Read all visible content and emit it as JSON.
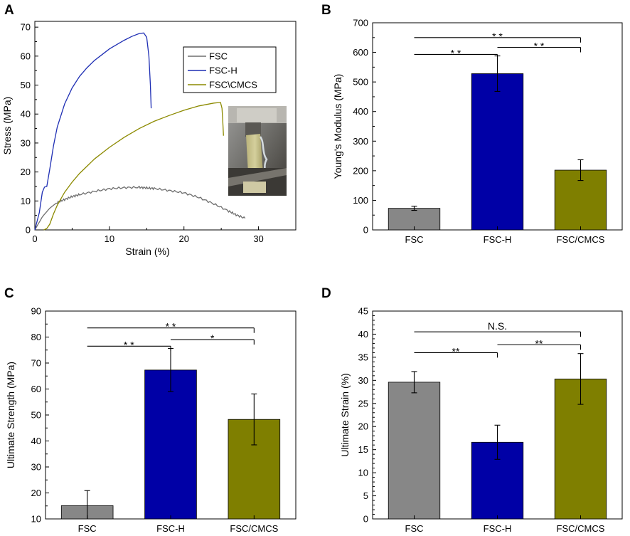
{
  "chart_data": [
    {
      "panel": "A",
      "type": "line",
      "xlabel": "Strain (%)",
      "ylabel": "Stress (MPa)",
      "xlim": [
        0,
        35
      ],
      "ylim": [
        0,
        72
      ],
      "xticks": [
        0,
        10,
        20,
        30
      ],
      "yticks": [
        0,
        10,
        20,
        30,
        40,
        50,
        60,
        70
      ],
      "legend_position": "top-right",
      "inset": "photo of specimen in tensile grips",
      "series": [
        {
          "name": "FSC",
          "color": "#6e6e6e",
          "x": [
            0,
            1,
            2,
            3,
            4,
            5,
            6,
            8,
            10,
            12,
            14,
            15,
            16,
            18,
            20,
            22,
            24,
            26,
            27,
            28.2
          ],
          "y": [
            0,
            4.5,
            7.5,
            9.5,
            10.5,
            11.5,
            12.2,
            13.3,
            14.2,
            14.6,
            14.7,
            14.5,
            14.3,
            13.6,
            12.8,
            11.2,
            9.0,
            6.5,
            5.2,
            4.0
          ]
        },
        {
          "name": "FSC-H",
          "color": "#1f2fb4",
          "x": [
            0,
            0.6,
            1.0,
            1.3,
            1.6,
            2.0,
            2.5,
            3,
            4,
            5,
            6,
            7,
            8,
            9,
            10,
            11,
            12,
            13,
            14,
            14.6,
            15.0,
            15.3,
            15.5,
            15.6
          ],
          "y": [
            0,
            6,
            13,
            14.8,
            15,
            21,
            29,
            35.5,
            43.5,
            49,
            53,
            56,
            58.5,
            60.5,
            62.5,
            64,
            65.5,
            66.8,
            67.8,
            68.0,
            66.5,
            60,
            50,
            42
          ]
        },
        {
          "name": "FSC\\CMCS",
          "color": "#8c8a00",
          "x": [
            1.2,
            1.6,
            2.0,
            2.5,
            3,
            4,
            5,
            6,
            8,
            10,
            12,
            14,
            16,
            18,
            20,
            22,
            24,
            24.9,
            25.1,
            25.2,
            25.3
          ],
          "y": [
            0,
            0.5,
            2.0,
            5.5,
            8.5,
            13,
            16.5,
            19.5,
            24.5,
            28.5,
            32,
            35,
            37.5,
            39.5,
            41.3,
            42.8,
            43.8,
            44.0,
            42.0,
            38.0,
            32.5
          ]
        }
      ]
    },
    {
      "panel": "B",
      "type": "bar",
      "categories": [
        "FSC",
        "FSC-H",
        "FSC/CMCS"
      ],
      "values": [
        73,
        528,
        202
      ],
      "errors": [
        7,
        60,
        35
      ],
      "colors": [
        "#878787",
        "#0000a6",
        "#7f7f00"
      ],
      "ylabel": "Young's Modulus (MPa)",
      "ylim": [
        0,
        700
      ],
      "yticks": [
        0,
        100,
        200,
        300,
        400,
        500,
        600,
        700
      ],
      "significance": [
        {
          "from": 0,
          "to": 2,
          "label": "* *",
          "level": 650
        },
        {
          "from": 0,
          "to": 1,
          "label": "* *",
          "level": 593
        },
        {
          "from": 1,
          "to": 2,
          "label": "* *",
          "level": 617
        }
      ]
    },
    {
      "panel": "C",
      "type": "bar",
      "categories": [
        "FSC",
        "FSC-H",
        "FSC/CMCS"
      ],
      "values": [
        15.1,
        67.3,
        48.3
      ],
      "errors": [
        5.8,
        8.3,
        9.8
      ],
      "colors": [
        "#878787",
        "#0000a6",
        "#7f7f00"
      ],
      "ylabel": "Ultimate Strength (MPa)",
      "ylim": [
        10,
        90
      ],
      "yticks": [
        10,
        20,
        30,
        40,
        50,
        60,
        70,
        80,
        90
      ],
      "significance": [
        {
          "from": 0,
          "to": 2,
          "label": "* *",
          "level": 83.5
        },
        {
          "from": 0,
          "to": 1,
          "label": "* *",
          "level": 76.5
        },
        {
          "from": 1,
          "to": 2,
          "label": "*",
          "level": 79
        }
      ]
    },
    {
      "panel": "D",
      "type": "bar",
      "categories": [
        "FSC",
        "FSC-H",
        "FSC/CMCS"
      ],
      "values": [
        29.6,
        16.6,
        30.3
      ],
      "errors": [
        2.3,
        3.7,
        5.5
      ],
      "colors": [
        "#878787",
        "#0000a6",
        "#7f7f00"
      ],
      "ylabel": "Ultimate Strain (%)",
      "ylim": [
        0,
        45
      ],
      "yticks": [
        0,
        5,
        10,
        15,
        20,
        25,
        30,
        35,
        40,
        45
      ],
      "significance": [
        {
          "from": 0,
          "to": 2,
          "label": "N.S.",
          "level": 40.5
        },
        {
          "from": 0,
          "to": 1,
          "label": "**",
          "level": 36
        },
        {
          "from": 1,
          "to": 2,
          "label": "**",
          "level": 37.7
        }
      ]
    }
  ]
}
